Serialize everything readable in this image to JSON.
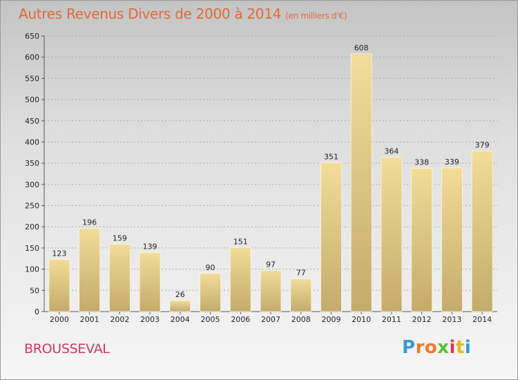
{
  "header": {
    "title": "Autres Revenus Divers de 2000 à 2014",
    "subtitle": "(en milliers d'€)"
  },
  "footer": {
    "place": "BROUSSEVAL",
    "logo_letters": [
      "P",
      "r",
      "o",
      "x",
      "i",
      "t",
      "i"
    ],
    "logo_colors": [
      "#3a9ad9",
      "#f07a2a",
      "#f07a2a",
      "#5abf3a",
      "#d93a5a",
      "#e8b82a",
      "#3a9ad9"
    ]
  },
  "colors": {
    "bar_light": "#f2dc98",
    "bar_dark": "#c4ab6c",
    "grid": "#aaaaaa",
    "title": "#e06a3a",
    "place": "#cc3a5c"
  },
  "chart_data": {
    "type": "bar",
    "title": "Autres Revenus Divers de 2000 à 2014",
    "subtitle": "(en milliers d'€)",
    "xlabel": "",
    "ylabel": "",
    "categories": [
      "2000",
      "2001",
      "2002",
      "2003",
      "2004",
      "2005",
      "2006",
      "2007",
      "2008",
      "2009",
      "2010",
      "2011",
      "2012",
      "2013",
      "2014"
    ],
    "values": [
      123,
      196,
      159,
      139,
      26,
      90,
      151,
      97,
      77,
      351,
      608,
      364,
      338,
      339,
      379
    ],
    "ylim": [
      0,
      650
    ],
    "yticks": [
      0,
      50,
      100,
      150,
      200,
      250,
      300,
      350,
      400,
      450,
      500,
      550,
      600,
      650
    ],
    "grid": true,
    "legend": "none"
  }
}
